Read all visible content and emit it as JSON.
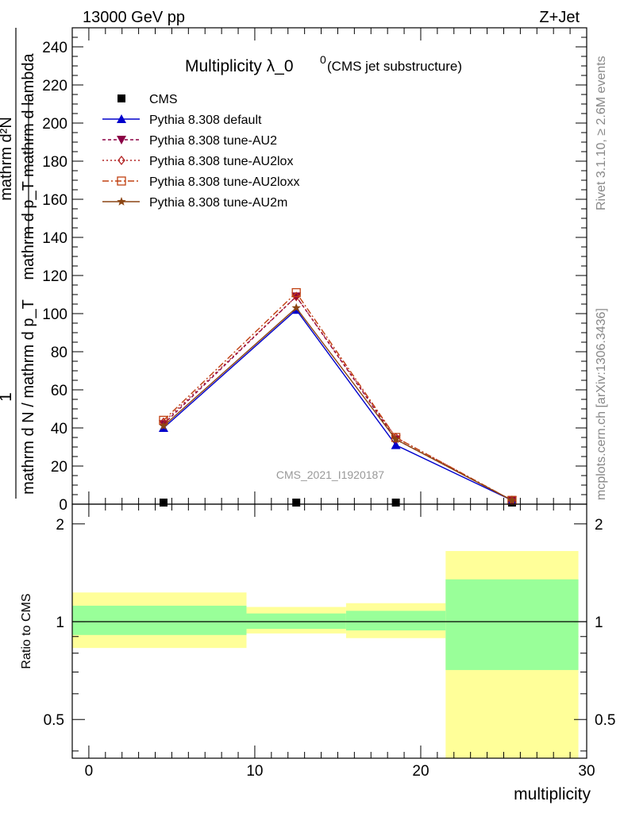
{
  "header": {
    "left": "13000 GeV pp",
    "right": "Z+Jet"
  },
  "side_labels": {
    "rivet": "Rivet 3.1.10, ≥ 2.6M events",
    "mcplots": "mcplots.cern.ch [arXiv:1306.3436]"
  },
  "main_plot": {
    "title_main": "Multiplicity λ_0",
    "title_sup": "0",
    "title_paren": "(CMS jet substructure)",
    "analysis_label": "CMS_2021_I1920187",
    "ylabel_numer": "mathrm d²N",
    "ylabel_denom": "mathrm d p_T mathrm d lambda",
    "ylabel_prefix_numer": "1",
    "ylabel_prefix_denom": "mathrm d N / mathrm d p_T",
    "yticks": [
      "0",
      "20",
      "40",
      "60",
      "80",
      "100",
      "120",
      "140",
      "160",
      "180",
      "200",
      "220",
      "240"
    ]
  },
  "ratio_plot": {
    "ylabel": "Ratio to CMS",
    "yticks": [
      "0.5",
      "1",
      "2"
    ],
    "xlabel": "multiplicity",
    "xticks": [
      "0",
      "10",
      "20",
      "30"
    ]
  },
  "legend": [
    {
      "label": "CMS",
      "color": "#000000",
      "marker": "square"
    },
    {
      "label": "Pythia 8.308 default",
      "color": "#0000cc",
      "marker": "triangle-up"
    },
    {
      "label": "Pythia 8.308 tune-AU2",
      "color": "#8b0045",
      "marker": "triangle-down"
    },
    {
      "label": "Pythia 8.308 tune-AU2lox",
      "color": "#b22222",
      "marker": "diamond-open"
    },
    {
      "label": "Pythia 8.308 tune-AU2loxx",
      "color": "#c04010",
      "marker": "square-open"
    },
    {
      "label": "Pythia 8.308 tune-AU2m",
      "color": "#8b4513",
      "marker": "star"
    }
  ],
  "chart_data": {
    "type": "line",
    "xlabel": "multiplicity",
    "ylim_main": [
      0,
      250
    ],
    "ylim_ratio": [
      0.38,
      2.3
    ],
    "xlim": [
      -1,
      30
    ],
    "ratio_log_scale": true,
    "x": [
      4.5,
      12.5,
      18.5,
      25.5
    ],
    "series": [
      {
        "name": "CMS",
        "values": [
          0.5,
          0.5,
          0.5,
          0.5
        ]
      },
      {
        "name": "Pythia 8.308 default",
        "values": [
          40,
          102,
          31,
          2
        ]
      },
      {
        "name": "Pythia 8.308 tune-AU2",
        "values": [
          42,
          109,
          34,
          2
        ]
      },
      {
        "name": "Pythia 8.308 tune-AU2lox",
        "values": [
          43,
          109,
          35,
          2
        ]
      },
      {
        "name": "Pythia 8.308 tune-AU2loxx",
        "values": [
          44,
          111,
          35,
          2
        ]
      },
      {
        "name": "Pythia 8.308 tune-AU2m",
        "values": [
          41,
          103,
          34,
          2
        ]
      }
    ],
    "ratio_bands": [
      {
        "x_lo": -1,
        "x_hi": 9.5,
        "yellow": [
          0.83,
          1.23
        ],
        "green": [
          0.91,
          1.12
        ]
      },
      {
        "x_lo": 9.5,
        "x_hi": 15.5,
        "yellow": [
          0.92,
          1.11
        ],
        "green": [
          0.95,
          1.06
        ]
      },
      {
        "x_lo": 15.5,
        "x_hi": 21.5,
        "yellow": [
          0.89,
          1.14
        ],
        "green": [
          0.94,
          1.08
        ]
      },
      {
        "x_lo": 21.5,
        "x_hi": 29.5,
        "yellow": [
          0.38,
          1.65
        ],
        "green": [
          0.71,
          1.35
        ]
      }
    ],
    "grid": false,
    "legend_position": "top-left"
  }
}
